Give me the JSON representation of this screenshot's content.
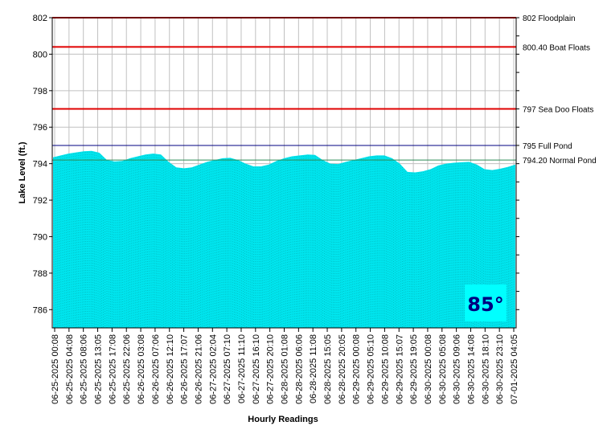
{
  "chart_data": {
    "type": "area",
    "xlabel": "Hourly Readings",
    "ylabel": "Lake Level (ft.)",
    "ylim": [
      785,
      802
    ],
    "yticks": [
      786,
      788,
      790,
      792,
      794,
      796,
      798,
      800,
      802
    ],
    "grid": true,
    "x_tick_labels": [
      "06-25-2025 00:08",
      "06-25-2025 04:08",
      "06-25-2025 08:06",
      "06-25-2025 13:05",
      "06-25-2025 17:08",
      "06-25-2025 22:06",
      "06-26-2025 03:08",
      "06-26-2025 07:06",
      "06-26-2025 12:10",
      "06-26-2025 17:07",
      "06-26-2025 21:06",
      "06-27-2025 02:04",
      "06-27-2025 07:10",
      "06-27-2025 11:10",
      "06-27-2025 16:10",
      "06-27-2025 20:10",
      "06-28-2025 01:08",
      "06-28-2025 06:06",
      "06-28-2025 11:08",
      "06-28-2025 15:05",
      "06-28-2025 20:05",
      "06-29-2025 00:08",
      "06-29-2025 05:10",
      "06-29-2025 10:08",
      "06-29-2025 15:07",
      "06-29-2025 19:05",
      "06-30-2025 00:08",
      "06-30-2025 05:08",
      "06-30-2025 09:06",
      "06-30-2025 14:08",
      "06-30-2025 18:10",
      "06-30-2025 23:10",
      "07-01-2025 04:05"
    ],
    "series": [
      {
        "color": "#00e5ee",
        "values": [
          794.35,
          794.45,
          794.55,
          794.62,
          794.68,
          794.7,
          794.6,
          794.2,
          794.12,
          794.15,
          794.3,
          794.4,
          794.5,
          794.55,
          794.5,
          794.1,
          793.8,
          793.75,
          793.8,
          793.95,
          794.1,
          794.2,
          794.3,
          794.32,
          794.2,
          794.0,
          793.85,
          793.85,
          793.95,
          794.15,
          794.3,
          794.4,
          794.45,
          794.5,
          794.48,
          794.2,
          794.0,
          793.98,
          794.1,
          794.2,
          794.3,
          794.4,
          794.45,
          794.45,
          794.3,
          794.0,
          793.55,
          793.52,
          793.58,
          793.7,
          793.9,
          794.0,
          794.05,
          794.08,
          794.1,
          793.95,
          793.7,
          793.65,
          793.72,
          793.82,
          793.95
        ]
      }
    ],
    "reference_lines": [
      {
        "value": 802,
        "label": "802 Floodplain",
        "color": "#e00000"
      },
      {
        "value": 800.4,
        "label": "800.40 Boat Floats",
        "color": "#e00000"
      },
      {
        "value": 797,
        "label": "797 Sea Doo Floats",
        "color": "#e00000"
      },
      {
        "value": 795,
        "label": "795 Full Pond",
        "color": "#000080"
      },
      {
        "value": 794.2,
        "label": "794.20 Normal Pond",
        "color": "#2e8b57"
      }
    ],
    "temperature": {
      "text": "85°",
      "text_color": "#000080",
      "box_color": "#00ffff"
    }
  }
}
